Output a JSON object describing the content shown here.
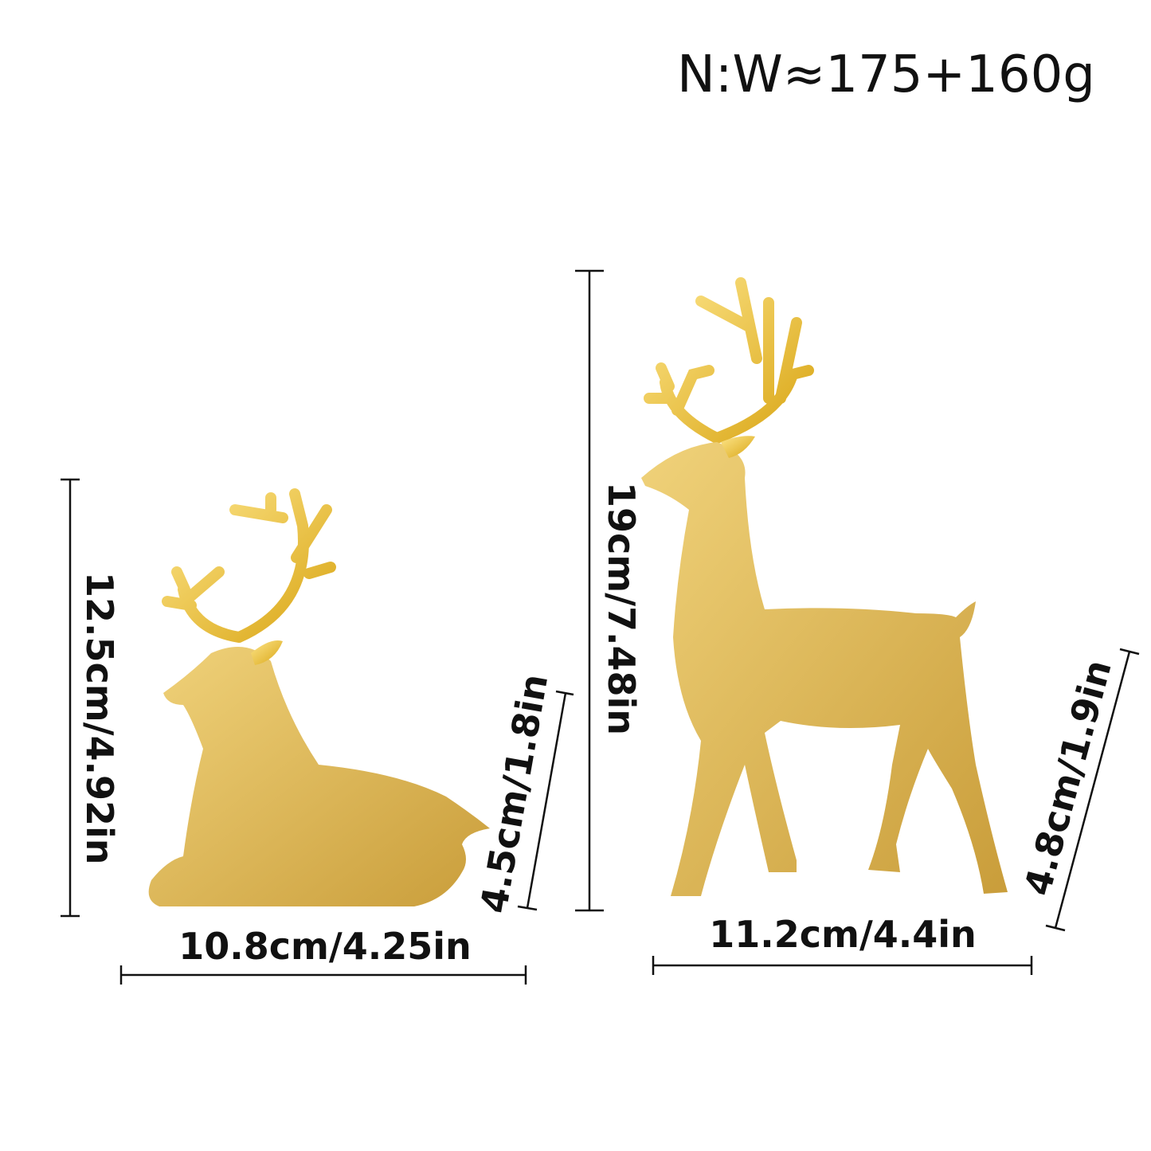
{
  "weight_label": "N:W≈175+160g",
  "colors": {
    "gold": "#d9b24a",
    "gold_light": "#f0d27a",
    "antler": "#e8b820",
    "line": "#111111"
  },
  "lying_deer": {
    "height": "12.5cm/4.92in",
    "width": "10.8cm/4.25in",
    "depth": "4.5cm/1.8in"
  },
  "standing_deer": {
    "height": "19cm/7.48in",
    "width": "11.2cm/4.4in",
    "depth": "4.8cm/1.9in"
  }
}
